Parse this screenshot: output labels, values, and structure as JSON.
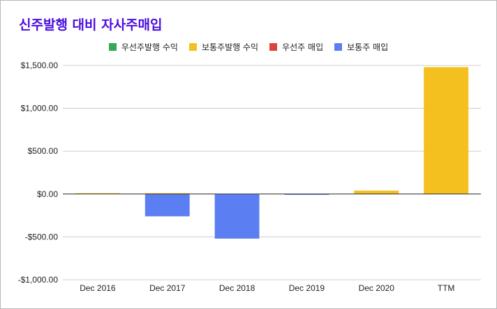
{
  "chart_data": {
    "type": "bar",
    "title": "신주발행 대비 자사주매입",
    "categories": [
      "Dec 2016",
      "Dec 2017",
      "Dec 2018",
      "Dec 2019",
      "Dec 2020",
      "TTM"
    ],
    "series": [
      {
        "name": "우선주발행 수익",
        "color": "#34a853",
        "values": [
          0,
          0,
          0,
          0,
          0,
          0
        ]
      },
      {
        "name": "보통주발행 수익",
        "color": "#f4c020",
        "values": [
          10,
          10,
          0,
          0,
          40,
          1480
        ]
      },
      {
        "name": "우선주 매입",
        "color": "#db4437",
        "values": [
          0,
          0,
          0,
          0,
          0,
          0
        ]
      },
      {
        "name": "보통주 매입",
        "color": "#5b7ff2",
        "values": [
          0,
          -260,
          -520,
          -10,
          0,
          0
        ]
      }
    ],
    "ylim": [
      -1000,
      1500
    ],
    "yticks": [
      1500,
      1000,
      500,
      0,
      -500,
      -1000
    ],
    "ytick_labels": [
      "$1,500.00",
      "$1,000.00",
      "$500.00",
      "$0.00",
      "-$500.00",
      "-$1,000.00"
    ],
    "grid": true,
    "legend_position": "top"
  }
}
